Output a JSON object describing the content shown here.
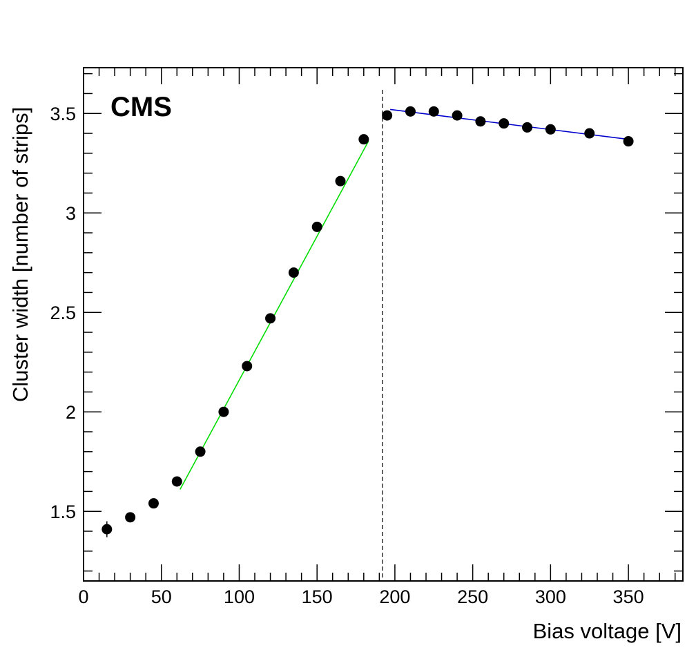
{
  "chart_data": {
    "type": "scatter",
    "label": "CMS",
    "xlabel": "Bias voltage [V]",
    "ylabel": "Cluster width [number of strips]",
    "xlim": [
      0,
      385
    ],
    "ylim": [
      1.15,
      3.73
    ],
    "xticks": [
      0,
      50,
      100,
      150,
      200,
      250,
      300,
      350
    ],
    "xtick_labels": [
      "0",
      "50",
      "100",
      "150",
      "200",
      "250",
      "300",
      "350"
    ],
    "yticks": [
      1.5,
      2,
      2.5,
      3,
      3.5
    ],
    "ytick_labels": [
      "1.5",
      "2",
      "2.5",
      "3",
      "3.5"
    ],
    "series": [
      {
        "name": "data",
        "x": [
          15,
          30,
          45,
          60,
          75,
          90,
          105,
          120,
          135,
          150,
          165,
          180,
          195,
          210,
          225,
          240,
          255,
          270,
          285,
          300,
          325,
          350
        ],
        "y": [
          1.41,
          1.47,
          1.54,
          1.65,
          1.8,
          2.0,
          2.23,
          2.47,
          2.7,
          2.93,
          3.16,
          3.37,
          3.49,
          3.51,
          3.51,
          3.49,
          3.46,
          3.45,
          3.43,
          3.42,
          3.4,
          3.36
        ],
        "yerr": [
          0.04,
          0.01,
          0.01,
          0.01,
          0.01,
          0.01,
          0.01,
          0.01,
          0.01,
          0.01,
          0.01,
          0.01,
          0.01,
          0.01,
          0.01,
          0.01,
          0.01,
          0.01,
          0.01,
          0.01,
          0.01,
          0.01
        ]
      }
    ],
    "fits": [
      {
        "name": "rising linear fit",
        "color": "#00dd00",
        "x": [
          62,
          183
        ],
        "y": [
          1.61,
          3.36
        ]
      },
      {
        "name": "plateau linear fit",
        "color": "#0000cc",
        "x": [
          197,
          350
        ],
        "y": [
          3.52,
          3.37
        ]
      }
    ],
    "vline": {
      "x": 192,
      "style": "dashed"
    }
  }
}
